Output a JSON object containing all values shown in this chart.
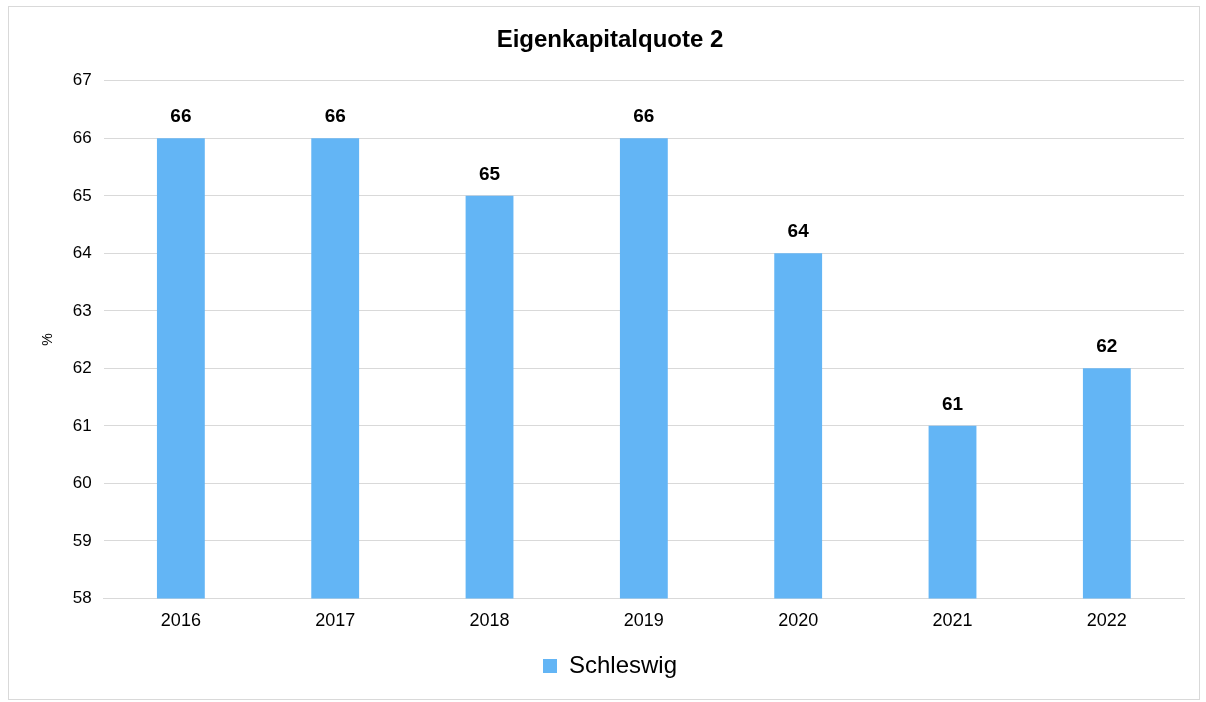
{
  "chart_data": {
    "type": "bar",
    "title": "Eigenkapitalquote 2",
    "ylabel": "%",
    "categories": [
      "2016",
      "2017",
      "2018",
      "2019",
      "2020",
      "2021",
      "2022"
    ],
    "series": [
      {
        "name": "Schleswig",
        "color": "#63b5f5",
        "values": [
          66,
          66,
          65,
          66,
          64,
          61,
          62
        ]
      }
    ],
    "ylim": [
      58,
      67
    ],
    "yticks": [
      58,
      59,
      60,
      61,
      62,
      63,
      64,
      65,
      66,
      67
    ],
    "grid": "y",
    "legend": "bottom",
    "data_labels": true
  }
}
